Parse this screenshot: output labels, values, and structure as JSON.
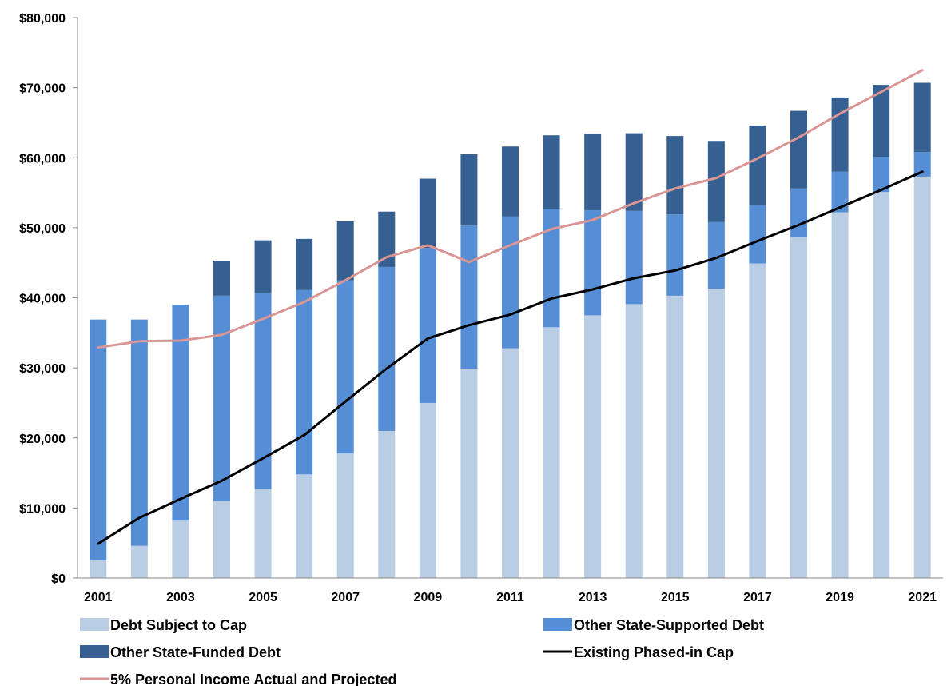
{
  "chart_data": {
    "type": "bar",
    "stacked": true,
    "title": "",
    "xlabel": "",
    "ylabel": "",
    "ylim": [
      0,
      80000
    ],
    "yticks": [
      "$0",
      "$10,000",
      "$20,000",
      "$30,000",
      "$40,000",
      "$50,000",
      "$60,000",
      "$70,000",
      "$80,000"
    ],
    "ytick_values": [
      0,
      10000,
      20000,
      30000,
      40000,
      50000,
      60000,
      70000,
      80000
    ],
    "categories": [
      2001,
      2002,
      2003,
      2004,
      2005,
      2006,
      2007,
      2008,
      2009,
      2010,
      2011,
      2012,
      2013,
      2014,
      2015,
      2016,
      2017,
      2018,
      2019,
      2020,
      2021
    ],
    "xtick_labels": [
      "2001",
      "2003",
      "2005",
      "2007",
      "2009",
      "2011",
      "2013",
      "2015",
      "2017",
      "2019",
      "2021"
    ],
    "xtick_years": [
      2001,
      2003,
      2005,
      2007,
      2009,
      2011,
      2013,
      2015,
      2017,
      2019,
      2021
    ],
    "grid": false,
    "legend_position": "bottom",
    "bar_series": [
      {
        "name": "Debt Subject to Cap",
        "color": "#b9cde4",
        "values": [
          2500,
          4600,
          8200,
          11000,
          12700,
          14800,
          17800,
          21000,
          25000,
          29900,
          32800,
          35800,
          37500,
          39100,
          40300,
          41300,
          44900,
          48700,
          52200,
          55100,
          57300
        ]
      },
      {
        "name": "Other State-Supported Debt",
        "color": "#558ed5",
        "values": [
          34400,
          32300,
          30800,
          29300,
          28000,
          26300,
          24700,
          23400,
          22100,
          20400,
          18800,
          16900,
          15000,
          13300,
          11600,
          9500,
          8300,
          6900,
          5800,
          5000,
          3500
        ]
      },
      {
        "name": "Other State-Funded Debt",
        "color": "#376092",
        "values": [
          0,
          0,
          0,
          5000,
          7500,
          7300,
          8400,
          7900,
          9900,
          10200,
          10000,
          10500,
          10900,
          11100,
          11200,
          11600,
          11400,
          11100,
          10600,
          10300,
          9900
        ]
      }
    ],
    "line_series": [
      {
        "name": "Existing Phased-in Cap",
        "color": "#000000",
        "values": [
          4900,
          8600,
          11300,
          13900,
          17100,
          20400,
          25200,
          29900,
          34200,
          36100,
          37600,
          39900,
          41200,
          42800,
          43900,
          45700,
          48100,
          50400,
          52900,
          55400,
          58000
        ]
      },
      {
        "name": "5% Personal Income Actual and Projected",
        "color": "#d99694",
        "values": [
          32900,
          33800,
          33900,
          34700,
          37000,
          39400,
          42500,
          45800,
          47500,
          45100,
          47500,
          49800,
          51100,
          53500,
          55600,
          57100,
          59900,
          62900,
          66300,
          69400,
          72500
        ]
      }
    ],
    "legend": [
      {
        "label": "Debt Subject to Cap",
        "kind": "bar",
        "color": "#b9cde4"
      },
      {
        "label": "Other State-Supported Debt",
        "kind": "bar",
        "color": "#558ed5"
      },
      {
        "label": "Other State-Funded Debt",
        "kind": "bar",
        "color": "#376092"
      },
      {
        "label": "Existing Phased-in Cap",
        "kind": "line",
        "color": "#000000"
      },
      {
        "label": "5% Personal Income Actual and Projected",
        "kind": "line",
        "color": "#d99694"
      }
    ]
  }
}
